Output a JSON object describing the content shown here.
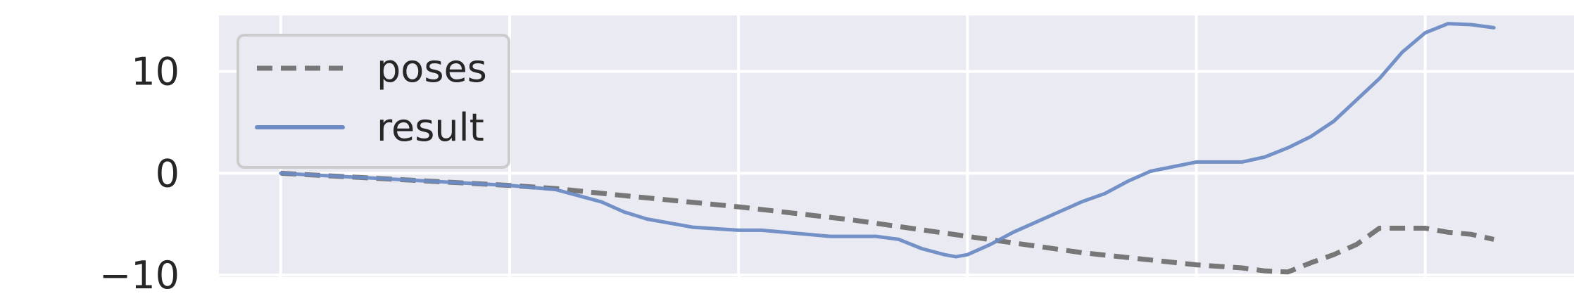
{
  "chart_data": {
    "type": "line",
    "title": "",
    "xlabel": "",
    "ylabel": "",
    "xlim": [
      -2.7,
      56.5
    ],
    "ylim": [
      -10.2,
      15.5
    ],
    "yticks": [
      {
        "value": 10,
        "label": "10"
      },
      {
        "value": 0,
        "label": "0"
      },
      {
        "value": -10,
        "label": "−10"
      }
    ],
    "xgrid": [
      0,
      10,
      20,
      30,
      40,
      50
    ],
    "grid": true,
    "legend": "top-left",
    "series": [
      {
        "name": "poses",
        "style": "dashed",
        "color": "#777777",
        "x": [
          0,
          5,
          10,
          12,
          15,
          20,
          25,
          30,
          35,
          40,
          42,
          43,
          44,
          45,
          46,
          47,
          48,
          49,
          50,
          51,
          52,
          53
        ],
        "y": [
          0,
          -0.6,
          -1.2,
          -1.5,
          -2.2,
          -3.3,
          -4.6,
          -6.2,
          -7.8,
          -9.0,
          -9.3,
          -9.6,
          -9.7,
          -8.8,
          -8.0,
          -7.0,
          -5.4,
          -5.4,
          -5.4,
          -5.8,
          -6.0,
          -6.5
        ]
      },
      {
        "name": "result",
        "style": "solid",
        "color": "#6d8bc4",
        "x": [
          0,
          5,
          10,
          12,
          13,
          14,
          15,
          16,
          18,
          20,
          21,
          22,
          24,
          26,
          27,
          28,
          29,
          29.5,
          30,
          31,
          32,
          33,
          34,
          35,
          36,
          37,
          38,
          40,
          41,
          42,
          43,
          44,
          45,
          46,
          47,
          48,
          49,
          50,
          51,
          52,
          53
        ],
        "y": [
          0,
          -0.6,
          -1.2,
          -1.6,
          -2.2,
          -2.8,
          -3.8,
          -4.5,
          -5.3,
          -5.6,
          -5.6,
          -5.8,
          -6.2,
          -6.2,
          -6.5,
          -7.4,
          -8.0,
          -8.2,
          -8.0,
          -7.0,
          -5.8,
          -4.8,
          -3.8,
          -2.8,
          -2.0,
          -0.8,
          0.2,
          1.1,
          1.1,
          1.1,
          1.6,
          2.5,
          3.6,
          5.1,
          7.2,
          9.3,
          11.9,
          13.8,
          14.7,
          14.6,
          14.3
        ]
      }
    ]
  }
}
